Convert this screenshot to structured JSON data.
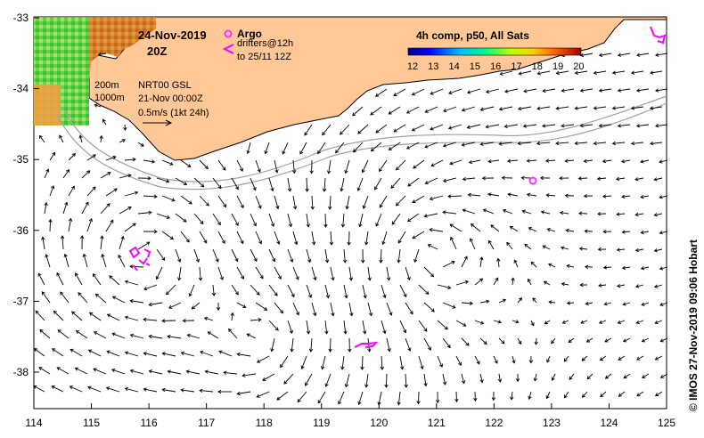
{
  "map": {
    "date": "24-Nov-2019",
    "time": "20Z",
    "depth_200": "200m",
    "depth_1000": "1000m",
    "product": "NRT00 GSL",
    "product_date": "21-Nov 00:00Z",
    "scale_label": "0.5m/s (1kt 24h)",
    "legend_argo": "Argo",
    "legend_drifters_1": "drifters@12h",
    "legend_drifters_2": "to 25/11 12Z",
    "colorbar_title": "4h comp, p50, All Sats",
    "colorbar_ticks": [
      "12",
      "13",
      "14",
      "15",
      "16",
      "17",
      "18",
      "19",
      "20"
    ],
    "credit": "© IMOS 27-Nov-2019 09:06 Hobart",
    "x_ticks": [
      "114",
      "115",
      "116",
      "117",
      "118",
      "119",
      "120",
      "121",
      "122",
      "123",
      "124",
      "125"
    ],
    "y_ticks": [
      "-33",
      "-34",
      "-35",
      "-36",
      "-37",
      "-38"
    ],
    "colors": {
      "land": "#ffc896",
      "argo": "#ff33ff",
      "drifter": "#ff00ff",
      "isobath": "#a0a0a0"
    }
  }
}
